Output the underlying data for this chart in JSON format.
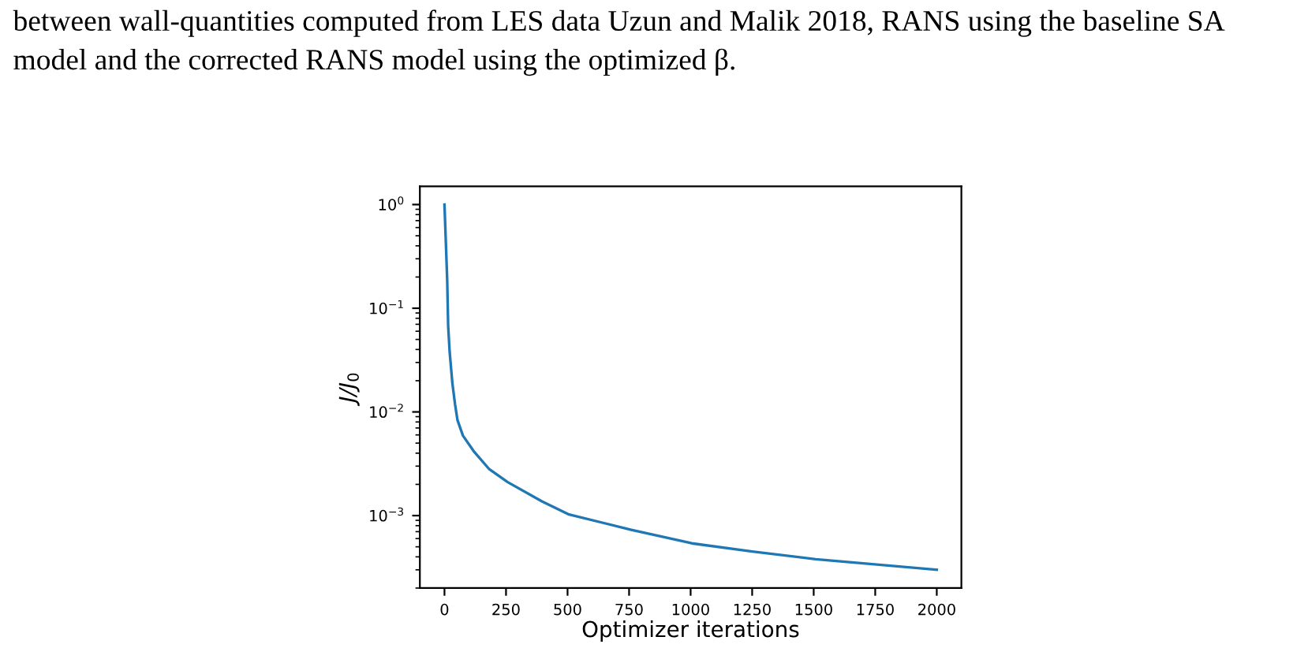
{
  "chart_data": {
    "type": "line",
    "xlabel": "Optimizer iterations",
    "ylabel": "J/J$_{0}$",
    "annotations": [
      "between wall-quantities computed from LES data Uzun and Malik 2018, RANS using the baseline SA",
      "model and the corrected RANS model using the optimized β."
    ],
    "series": [
      {
        "color": "#1f77b4",
        "x": [
          0,
          11,
          15,
          21,
          32,
          43,
          53,
          75,
          118,
          182,
          257,
          396,
          503,
          759,
          1005,
          1251,
          1508,
          2000
        ],
        "values": [
          1,
          0.19,
          0.067,
          0.038,
          0.019,
          0.0118,
          0.0083,
          0.0059,
          0.0042,
          0.0028,
          0.0021,
          0.00137,
          0.00103,
          0.00073,
          0.00054,
          0.00045,
          0.00038,
          0.0003
        ]
      }
    ],
    "log": "y",
    "xlim": [
      -100,
      2100
    ],
    "ylim": [
      0.0002,
      1.5
    ],
    "xticks": [
      0,
      250,
      500,
      750,
      1000,
      1250,
      1500,
      1750,
      2000
    ],
    "yticks": [
      {
        "value": 1,
        "label": "10$^{0}$"
      },
      {
        "value": 0.1,
        "label": "10$^{−1}$"
      },
      {
        "value": 0.01,
        "label": "10$^{−2}$"
      },
      {
        "value": 0.001,
        "label": "10$^{−3}$"
      }
    ],
    "grid": false,
    "legend": false,
    "marker": "none",
    "line_style": "solid"
  }
}
